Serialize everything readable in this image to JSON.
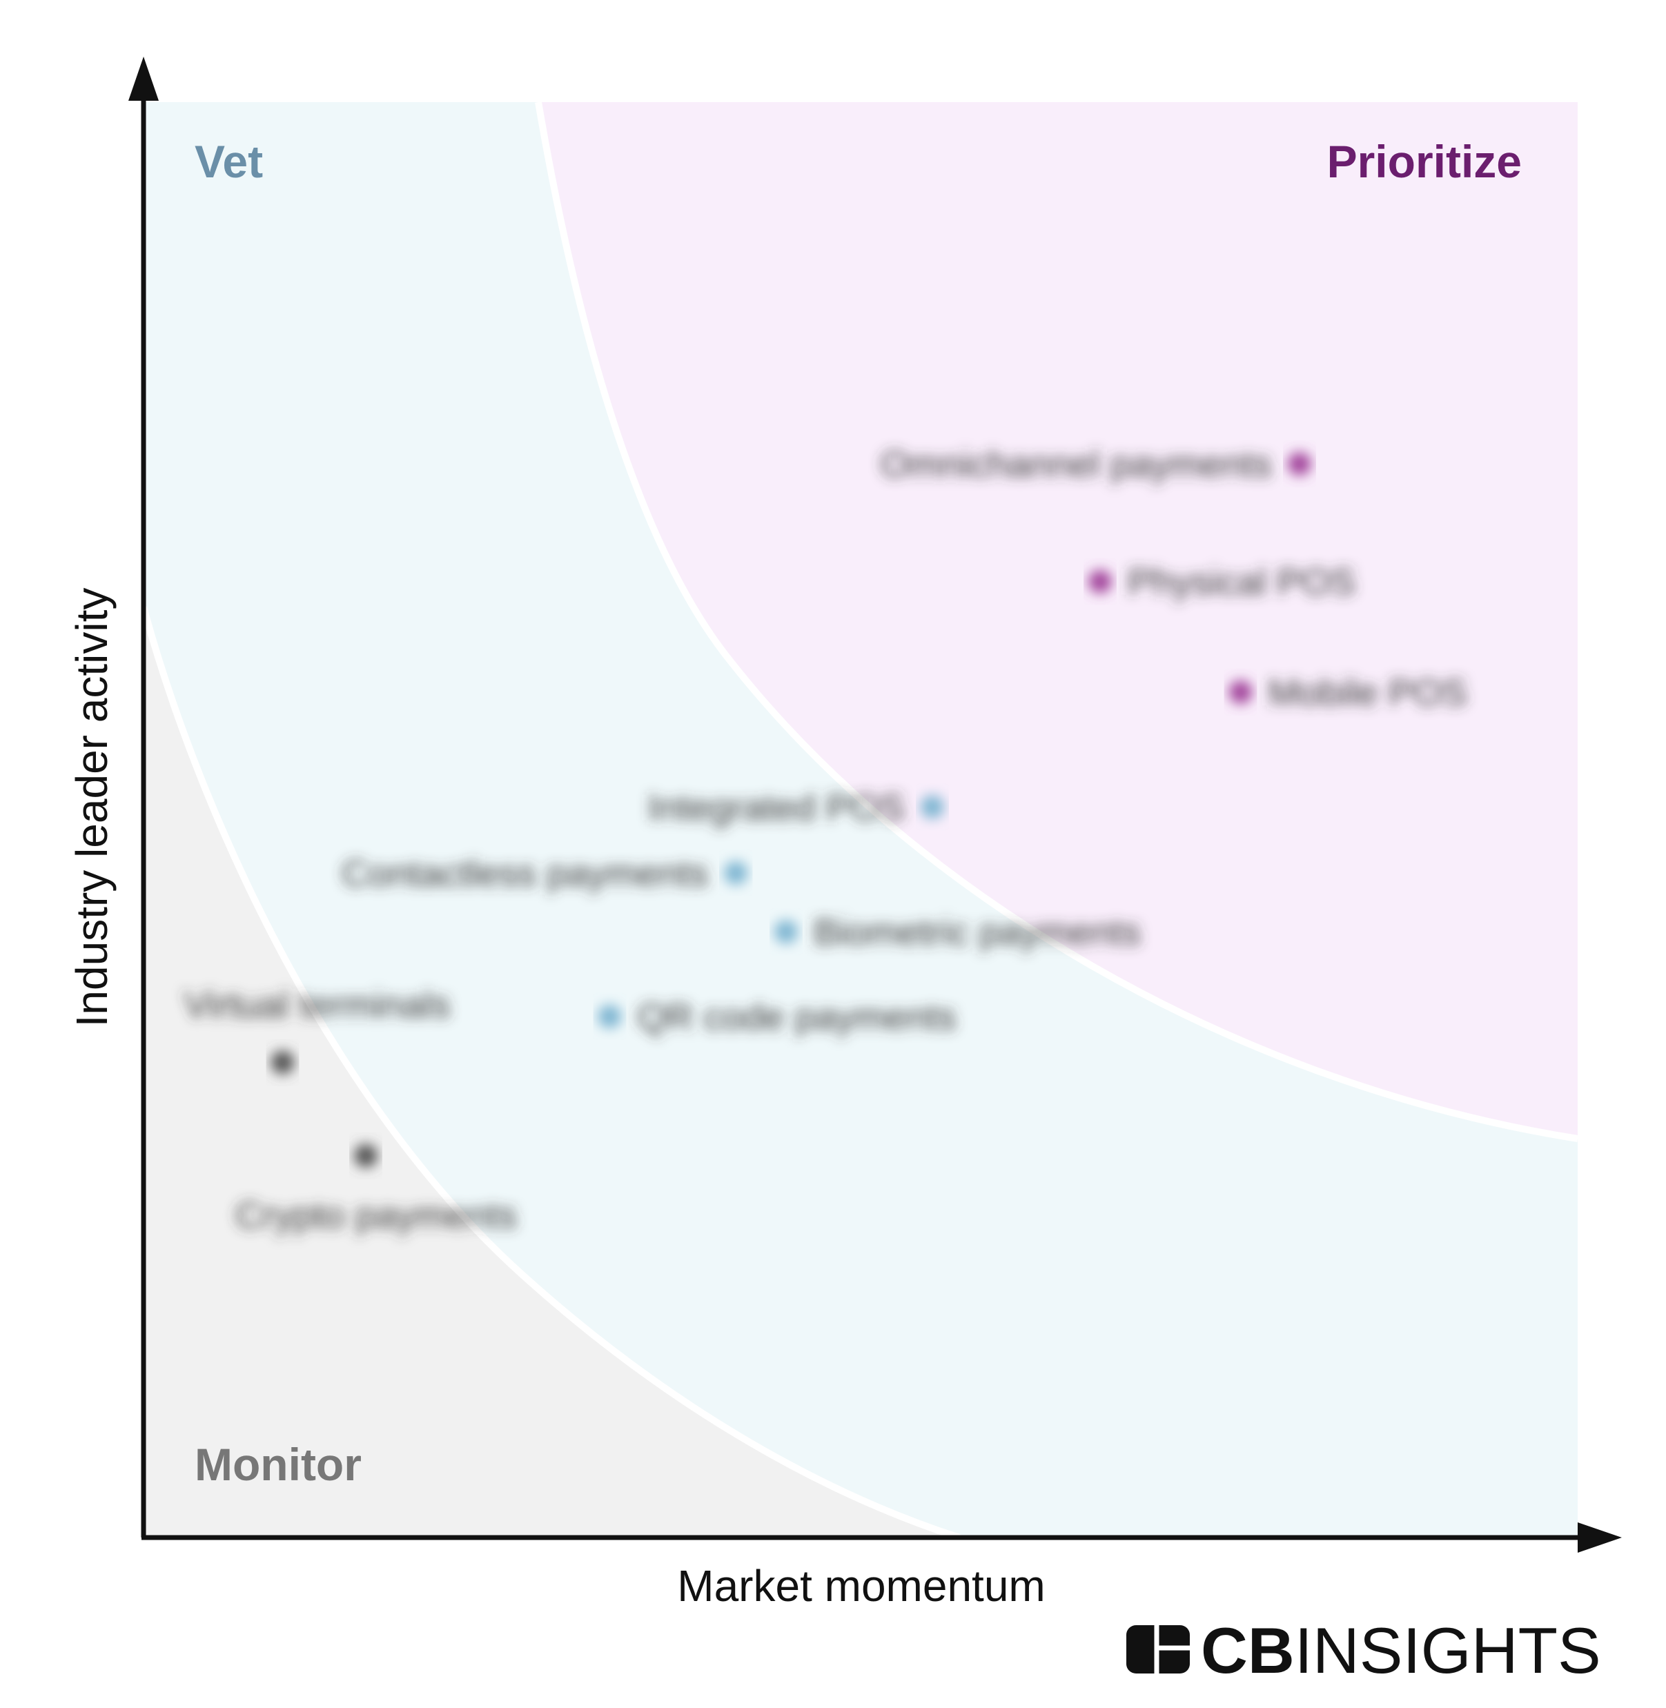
{
  "chart_data": {
    "type": "scatter",
    "xlabel": "Market momentum",
    "ylabel": "Industry leader activity",
    "xlim": [
      0,
      100
    ],
    "ylim": [
      0,
      100
    ],
    "grid": false,
    "zones": [
      {
        "name": "Vet",
        "color": "#6a8fa8"
      },
      {
        "name": "Prioritize",
        "color": "#6b1e6e"
      },
      {
        "name": "Monitor",
        "color": "#777777"
      }
    ],
    "points": [
      {
        "label": "Omnichannel payments",
        "x": 80.6,
        "y": 74.8,
        "zone": "Prioritize",
        "label_side": "left"
      },
      {
        "label": "Physical POS",
        "x": 66.7,
        "y": 66.6,
        "zone": "Prioritize",
        "label_side": "right"
      },
      {
        "label": "Mobile POS",
        "x": 76.5,
        "y": 58.9,
        "zone": "Prioritize",
        "label_side": "right"
      },
      {
        "label": "Integrated POS",
        "x": 55.0,
        "y": 50.9,
        "zone": "Vet",
        "label_side": "left"
      },
      {
        "label": "Contactless payments",
        "x": 41.3,
        "y": 46.3,
        "zone": "Vet",
        "label_side": "left"
      },
      {
        "label": "Biometric payments",
        "x": 44.8,
        "y": 42.2,
        "zone": "Vet",
        "label_side": "right"
      },
      {
        "label": "QR code payments",
        "x": 32.5,
        "y": 36.3,
        "zone": "Vet",
        "label_side": "right"
      },
      {
        "label": "Virtual terminals",
        "x": 9.7,
        "y": 33.1,
        "zone": "Monitor",
        "label_side": "above"
      },
      {
        "label": "Crypto payments",
        "x": 15.5,
        "y": 26.6,
        "zone": "Monitor",
        "label_side": "below"
      }
    ]
  },
  "colors": {
    "vet_bg": "#eff8fa",
    "prioritize_bg": "#f9eefb",
    "monitor_bg": "#f1f1f1",
    "vet_dot": "#7fb6d2",
    "prioritize_dot": "#a2459b",
    "monitor_dot": "#555555"
  },
  "branding": {
    "logo_text_bold": "CB",
    "logo_text_light": "INSIGHTS"
  }
}
